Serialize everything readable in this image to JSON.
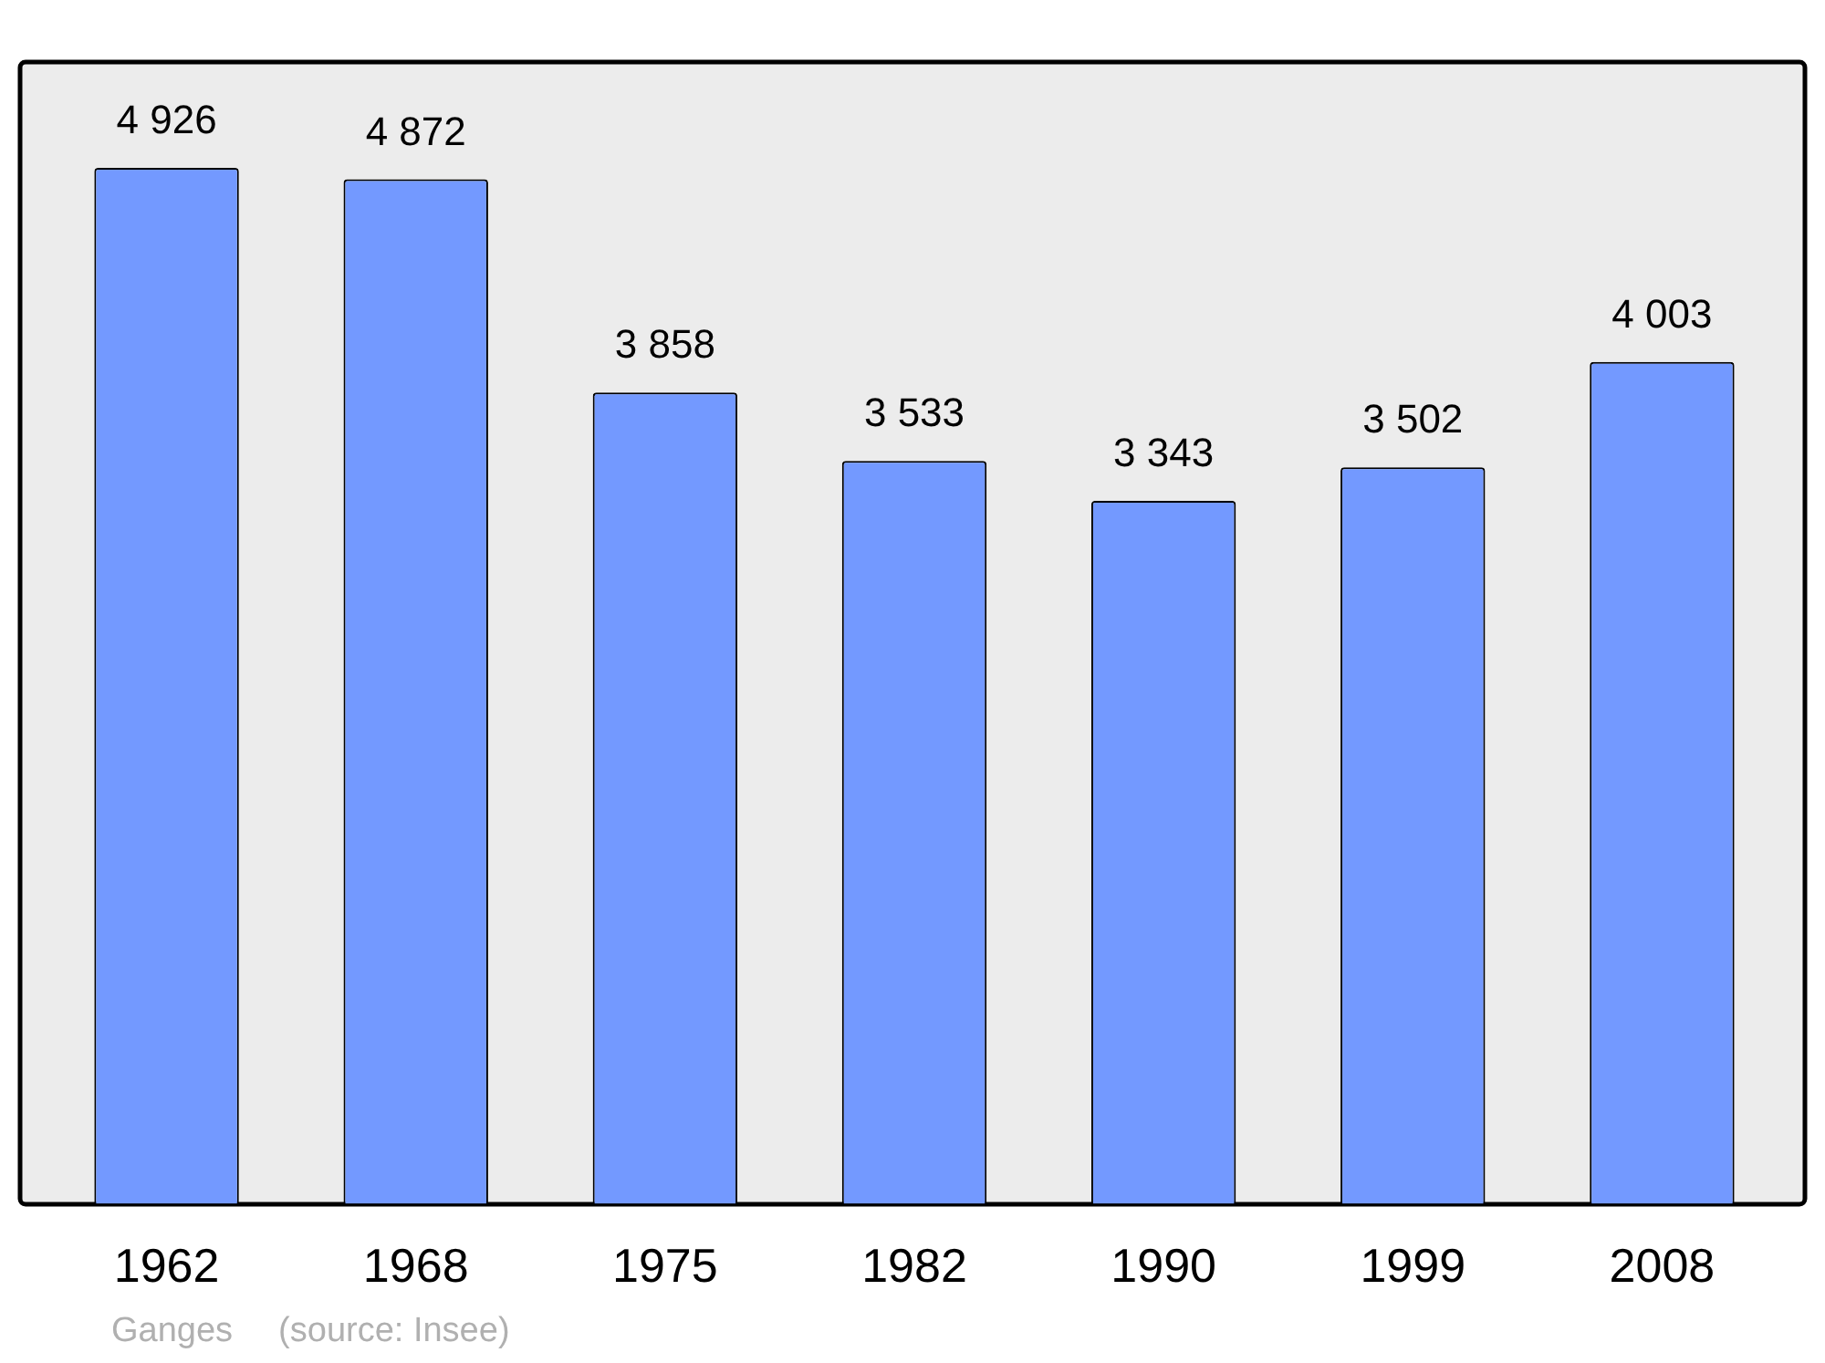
{
  "chart_data": {
    "type": "bar",
    "categories": [
      "1962",
      "1968",
      "1975",
      "1982",
      "1990",
      "1999",
      "2008"
    ],
    "values": [
      4926,
      4872,
      3858,
      3533,
      3343,
      3502,
      4003
    ],
    "value_labels": [
      "4 926",
      "4 872",
      "3 858",
      "3 533",
      "3 343",
      "3 502",
      "4 003"
    ],
    "color": "#7399ff",
    "grid": false,
    "legend": false,
    "annotations": [
      "Ganges",
      "(source: Insee)"
    ]
  }
}
